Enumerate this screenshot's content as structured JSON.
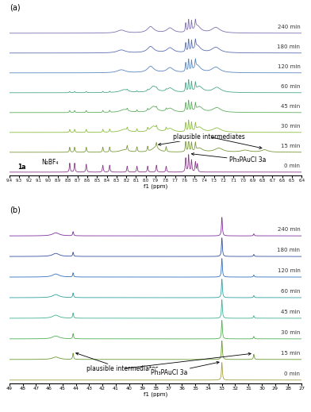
{
  "chart_data": [
    {
      "type": "line",
      "title": "(a)",
      "xlabel": "f1 (ppm)",
      "tick_labels": "x",
      "xlim": [
        9.4,
        6.4
      ],
      "xticks": [
        9.4,
        9.3,
        9.2,
        9.1,
        9.0,
        8.9,
        8.8,
        8.7,
        8.6,
        8.5,
        8.4,
        8.3,
        8.2,
        8.1,
        8.0,
        7.9,
        7.8,
        7.7,
        7.6,
        7.5,
        7.4,
        7.3,
        7.2,
        7.1,
        7.0,
        6.9,
        6.8,
        6.7,
        6.6,
        6.5,
        6.4
      ],
      "series": [
        {
          "name": "0 min",
          "color": "#8b3a8b",
          "peaks": {
            "x": [
              8.78,
              8.73,
              8.61,
              8.44,
              8.37,
              8.19,
              8.09,
              7.98,
              7.89,
              7.79,
              7.59,
              7.56,
              7.53,
              7.49,
              7.47
            ],
            "heights": [
              0.45,
              0.45,
              0.4,
              0.35,
              0.35,
              0.3,
              0.3,
              0.3,
              0.35,
              0.3,
              0.7,
              0.85,
              0.6,
              0.5,
              0.4
            ],
            "widths": [
              0.005,
              0.005,
              0.005,
              0.005,
              0.005,
              0.005,
              0.005,
              0.005,
              0.005,
              0.005,
              0.005,
              0.005,
              0.005,
              0.005,
              0.005
            ]
          }
        },
        {
          "name": "15 min",
          "color": "#7a9a3a",
          "peaks": {
            "x": [
              8.78,
              8.73,
              8.61,
              8.44,
              8.37,
              8.19,
              8.09,
              7.98,
              7.89,
              7.79,
              7.59,
              7.56,
              7.53,
              7.49,
              8.22,
              7.9,
              7.45,
              7.25,
              6.98,
              6.78
            ],
            "heights": [
              0.25,
              0.25,
              0.25,
              0.25,
              0.25,
              0.25,
              0.25,
              0.25,
              0.25,
              0.25,
              0.5,
              0.6,
              0.45,
              0.4,
              0.12,
              0.25,
              0.2,
              0.2,
              0.1,
              0.12
            ],
            "widths": [
              0.005,
              0.005,
              0.005,
              0.005,
              0.005,
              0.005,
              0.005,
              0.005,
              0.005,
              0.005,
              0.005,
              0.005,
              0.005,
              0.005,
              0.05,
              0.04,
              0.04,
              0.05,
              0.05,
              0.04
            ]
          }
        },
        {
          "name": "30 min",
          "color": "#8cbf3f",
          "peaks": {
            "x": [
              8.78,
              8.73,
              8.61,
              8.44,
              8.37,
              8.19,
              8.09,
              7.98,
              7.89,
              7.79,
              7.59,
              7.56,
              7.53,
              7.49,
              8.22,
              7.92,
              7.75,
              7.45,
              7.27
            ],
            "heights": [
              0.15,
              0.15,
              0.15,
              0.15,
              0.15,
              0.15,
              0.15,
              0.15,
              0.15,
              0.15,
              0.45,
              0.55,
              0.45,
              0.35,
              0.15,
              0.3,
              0.18,
              0.25,
              0.22
            ],
            "widths": [
              0.005,
              0.005,
              0.005,
              0.005,
              0.005,
              0.005,
              0.005,
              0.005,
              0.005,
              0.005,
              0.005,
              0.005,
              0.005,
              0.005,
              0.05,
              0.04,
              0.04,
              0.04,
              0.05
            ]
          }
        },
        {
          "name": "45 min",
          "color": "#5fae5f",
          "peaks": {
            "x": [
              8.78,
              8.73,
              8.61,
              8.44,
              8.37,
              8.19,
              8.09,
              7.98,
              7.89,
              7.79,
              7.59,
              7.56,
              7.53,
              7.49,
              8.22,
              7.92,
              7.75,
              7.45,
              7.27
            ],
            "heights": [
              0.1,
              0.1,
              0.1,
              0.1,
              0.1,
              0.1,
              0.1,
              0.1,
              0.1,
              0.1,
              0.45,
              0.55,
              0.45,
              0.35,
              0.15,
              0.3,
              0.2,
              0.28,
              0.24
            ],
            "widths": [
              0.005,
              0.005,
              0.005,
              0.005,
              0.005,
              0.005,
              0.005,
              0.005,
              0.005,
              0.005,
              0.005,
              0.005,
              0.005,
              0.005,
              0.05,
              0.04,
              0.04,
              0.04,
              0.05
            ]
          }
        },
        {
          "name": "60 min",
          "color": "#4aa88a",
          "peaks": {
            "x": [
              8.78,
              8.73,
              8.61,
              8.44,
              8.37,
              8.19,
              8.09,
              7.98,
              7.89,
              7.79,
              7.59,
              7.56,
              7.53,
              7.49,
              8.22,
              7.92,
              7.75,
              7.45,
              7.27
            ],
            "heights": [
              0.06,
              0.06,
              0.06,
              0.06,
              0.06,
              0.06,
              0.06,
              0.06,
              0.06,
              0.06,
              0.45,
              0.58,
              0.48,
              0.38,
              0.15,
              0.32,
              0.22,
              0.3,
              0.26
            ],
            "widths": [
              0.005,
              0.005,
              0.005,
              0.005,
              0.005,
              0.005,
              0.005,
              0.005,
              0.005,
              0.005,
              0.005,
              0.005,
              0.005,
              0.005,
              0.05,
              0.04,
              0.04,
              0.04,
              0.05
            ]
          }
        },
        {
          "name": "120 min",
          "color": "#5a86c0",
          "peaks": {
            "x": [
              7.59,
              7.56,
              7.53,
              7.49,
              8.25,
              7.95,
              7.75,
              7.47,
              7.28
            ],
            "heights": [
              0.45,
              0.6,
              0.5,
              0.4,
              0.15,
              0.32,
              0.25,
              0.35,
              0.28
            ],
            "widths": [
              0.005,
              0.005,
              0.005,
              0.005,
              0.05,
              0.04,
              0.04,
              0.04,
              0.05
            ]
          }
        },
        {
          "name": "180 min",
          "color": "#5a6fb0",
          "peaks": {
            "x": [
              7.59,
              7.56,
              7.53,
              7.49,
              8.25,
              7.95,
              7.75,
              7.47,
              7.28
            ],
            "heights": [
              0.45,
              0.6,
              0.5,
              0.4,
              0.15,
              0.32,
              0.25,
              0.35,
              0.28
            ],
            "widths": [
              0.005,
              0.005,
              0.005,
              0.005,
              0.05,
              0.04,
              0.04,
              0.04,
              0.05
            ]
          }
        },
        {
          "name": "240 min",
          "color": "#7f6fae",
          "peaks": {
            "x": [
              7.59,
              7.56,
              7.53,
              7.49,
              8.25,
              7.95,
              7.75,
              7.47,
              7.28
            ],
            "heights": [
              0.45,
              0.6,
              0.5,
              0.4,
              0.15,
              0.32,
              0.25,
              0.35,
              0.28
            ],
            "widths": [
              0.005,
              0.005,
              0.005,
              0.005,
              0.05,
              0.04,
              0.04,
              0.04,
              0.05
            ]
          }
        }
      ],
      "annotations": [
        {
          "text": "plausible intermediates",
          "series": "15 min",
          "targets": [
            7.9,
            6.78
          ]
        },
        {
          "text": "Ph₃PAuCl 3a",
          "series": "0 min",
          "targets": [
            7.56
          ]
        },
        {
          "text": "1a"
        },
        {
          "text": "N₂BF₄"
        }
      ]
    },
    {
      "type": "line",
      "title": "(b)",
      "xlabel": "f1 (ppm)",
      "tick_labels": "x",
      "xlim": [
        49,
        27
      ],
      "xticks": [
        49,
        48,
        47,
        46,
        45,
        44,
        43,
        42,
        41,
        40,
        39,
        38,
        37,
        36,
        35,
        34,
        33,
        32,
        31,
        30,
        29,
        28,
        27
      ],
      "series": [
        {
          "name": "0 min",
          "color": "#a0a040",
          "peaks": {
            "x": [
              33.0
            ],
            "heights": [
              0.85
            ],
            "widths": [
              0.04
            ]
          }
        },
        {
          "name": "15 min",
          "color": "#6a9a30",
          "peaks": {
            "x": [
              45.5,
              44.2,
              33.0,
              30.6
            ],
            "heights": [
              0.12,
              0.3,
              0.9,
              0.25
            ],
            "widths": [
              0.3,
              0.04,
              0.04,
              0.04
            ]
          }
        },
        {
          "name": "30 min",
          "color": "#50b050",
          "peaks": {
            "x": [
              45.5,
              44.2,
              33.0,
              30.6
            ],
            "heights": [
              0.14,
              0.25,
              0.9,
              0.12
            ],
            "widths": [
              0.3,
              0.04,
              0.04,
              0.04
            ]
          }
        },
        {
          "name": "45 min",
          "color": "#40b090",
          "peaks": {
            "x": [
              45.5,
              44.2,
              33.0,
              30.6
            ],
            "heights": [
              0.15,
              0.25,
              0.9,
              0.12
            ],
            "widths": [
              0.3,
              0.04,
              0.04,
              0.04
            ]
          }
        },
        {
          "name": "60 min",
          "color": "#30a0a0",
          "peaks": {
            "x": [
              45.5,
              44.2,
              33.0,
              30.6
            ],
            "heights": [
              0.15,
              0.22,
              0.9,
              0.1
            ],
            "widths": [
              0.3,
              0.04,
              0.04,
              0.04
            ]
          }
        },
        {
          "name": "120 min",
          "color": "#3070c0",
          "peaks": {
            "x": [
              45.5,
              44.2,
              33.0,
              30.6
            ],
            "heights": [
              0.15,
              0.2,
              0.9,
              0.1
            ],
            "widths": [
              0.3,
              0.04,
              0.04,
              0.04
            ]
          }
        },
        {
          "name": "180 min",
          "color": "#3050a0",
          "peaks": {
            "x": [
              45.5,
              44.2,
              33.0,
              30.6
            ],
            "heights": [
              0.15,
              0.2,
              0.9,
              0.1
            ],
            "widths": [
              0.3,
              0.04,
              0.04,
              0.04
            ]
          }
        },
        {
          "name": "240 min",
          "color": "#8030a0",
          "peaks": {
            "x": [
              45.5,
              44.2,
              33.0,
              30.6
            ],
            "heights": [
              0.15,
              0.2,
              0.9,
              0.1
            ],
            "widths": [
              0.3,
              0.04,
              0.04,
              0.04
            ]
          }
        }
      ],
      "annotations": [
        {
          "text": "plausible intermediates",
          "series": "15 min",
          "targets": [
            44.2,
            30.6
          ]
        },
        {
          "text": "Ph₃PAuCl 3a",
          "series": "0 min",
          "targets": [
            33.0
          ]
        }
      ]
    }
  ]
}
